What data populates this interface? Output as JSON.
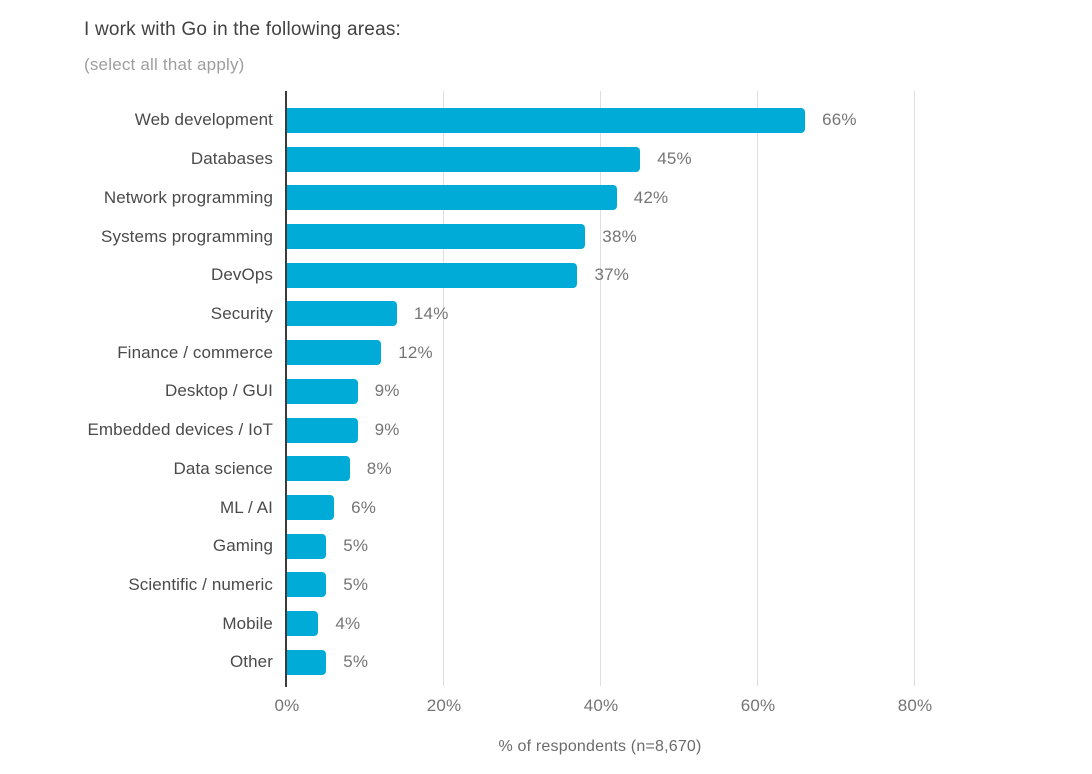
{
  "title": "I work with Go in the following areas:",
  "subtitle": "(select all that apply)",
  "chart_data": {
    "type": "bar",
    "orientation": "horizontal",
    "title": "I work with Go in the following areas:",
    "subtitle": "(select all that apply)",
    "categories": [
      "Web development",
      "Databases",
      "Network programming",
      "Systems programming",
      "DevOps",
      "Security",
      "Finance / commerce",
      "Desktop / GUI",
      "Embedded devices / IoT",
      "Data science",
      "ML / AI",
      "Gaming",
      "Scientific / numeric",
      "Mobile",
      "Other"
    ],
    "values": [
      66,
      45,
      42,
      38,
      37,
      14,
      12,
      9,
      9,
      8,
      6,
      5,
      5,
      4,
      5
    ],
    "value_labels": [
      "66%",
      "45%",
      "42%",
      "38%",
      "37%",
      "14%",
      "12%",
      "9%",
      "9%",
      "8%",
      "6%",
      "5%",
      "5%",
      "4%",
      "5%"
    ],
    "xlabel": "% of respondents (n=8,670)",
    "x_ticks": [
      {
        "value": 0,
        "label": "0%"
      },
      {
        "value": 20,
        "label": "20%"
      },
      {
        "value": 40,
        "label": "40%"
      },
      {
        "value": 60,
        "label": "60%"
      },
      {
        "value": 80,
        "label": "80%"
      }
    ],
    "xlim": [
      0,
      92
    ],
    "grid": "vertical-gridlines",
    "legend": "none",
    "colors": {
      "bar": "#00ACD7",
      "title": "#424242",
      "subtitle": "#9E9E9E",
      "category_label": "#4A4A4A",
      "value_label": "#757575",
      "tick_label": "#757575",
      "axis_line": "#3B3B3B",
      "gridline": "#DEDEDE",
      "background": "#FFFFFF"
    }
  }
}
